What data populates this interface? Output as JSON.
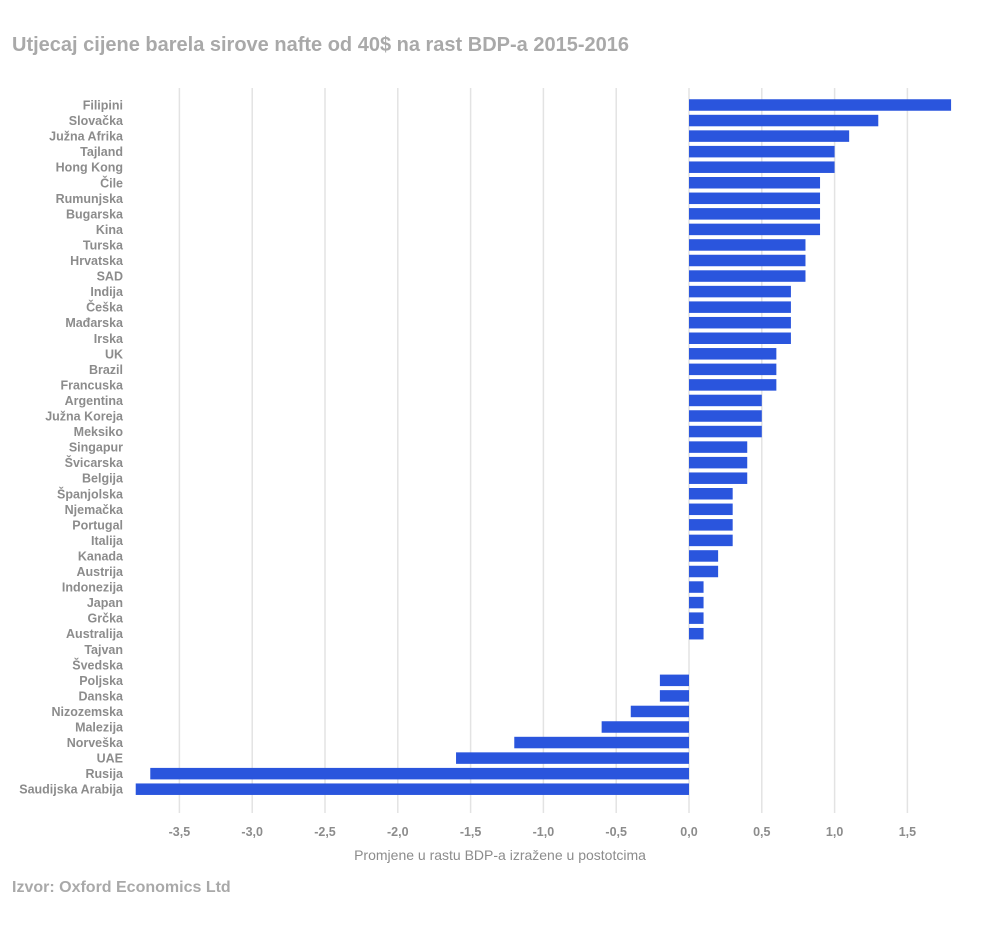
{
  "title": "Utjecaj cijene barela sirove nafte od 40$ na rast BDP-a 2015-2016",
  "source": "Izvor: Oxford Economics Ltd",
  "colors": {
    "bar": "#2a55dd",
    "text": "#8c8c8c",
    "grid": "#e3e3e3"
  },
  "chart_data": {
    "type": "bar",
    "orientation": "horizontal",
    "title": "Utjecaj cijene barela sirove nafte od 40$ na rast BDP-a 2015-2016",
    "xlabel": "Promjene u rastu BDP-a izražene u postotcima",
    "ylabel": "",
    "xlim": [
      -3.8,
      1.8
    ],
    "xticks": [
      -3.5,
      -3.0,
      -2.5,
      -2.0,
      -1.5,
      -1.0,
      -0.5,
      0.0,
      0.5,
      1.0,
      1.5
    ],
    "xtick_labels": [
      "-3,5",
      "-3,0",
      "-2,5",
      "-2,0",
      "-1,5",
      "-1,0",
      "-0,5",
      "0,0",
      "0,5",
      "1,0",
      "1,5"
    ],
    "grid": "vertical",
    "legend": "none",
    "categories": [
      "Filipini",
      "Slovačka",
      "Južna Afrika",
      "Tajland",
      "Hong Kong",
      "Čile",
      "Rumunjska",
      "Bugarska",
      "Kina",
      "Turska",
      "Hrvatska",
      "SAD",
      "Indija",
      "Češka",
      "Mađarska",
      "Irska",
      "UK",
      "Brazil",
      "Francuska",
      "Argentina",
      "Južna Koreja",
      "Meksiko",
      "Singapur",
      "Švicarska",
      "Belgija",
      "Španjolska",
      "Njemačka",
      "Portugal",
      "Italija",
      "Kanada",
      "Austrija",
      "Indonezija",
      "Japan",
      "Grčka",
      "Australija",
      "Tajvan",
      "Švedska",
      "Poljska",
      "Danska",
      "Nizozemska",
      "Malezija",
      "Norveška",
      "UAE",
      "Rusija",
      "Saudijska Arabija"
    ],
    "values": [
      1.8,
      1.3,
      1.1,
      1.0,
      1.0,
      0.9,
      0.9,
      0.9,
      0.9,
      0.8,
      0.8,
      0.8,
      0.7,
      0.7,
      0.7,
      0.7,
      0.6,
      0.6,
      0.6,
      0.5,
      0.5,
      0.5,
      0.4,
      0.4,
      0.4,
      0.3,
      0.3,
      0.3,
      0.3,
      0.2,
      0.2,
      0.1,
      0.1,
      0.1,
      0.1,
      0.0,
      0.0,
      -0.2,
      -0.2,
      -0.4,
      -0.6,
      -1.2,
      -1.6,
      -3.7,
      -3.8
    ]
  }
}
